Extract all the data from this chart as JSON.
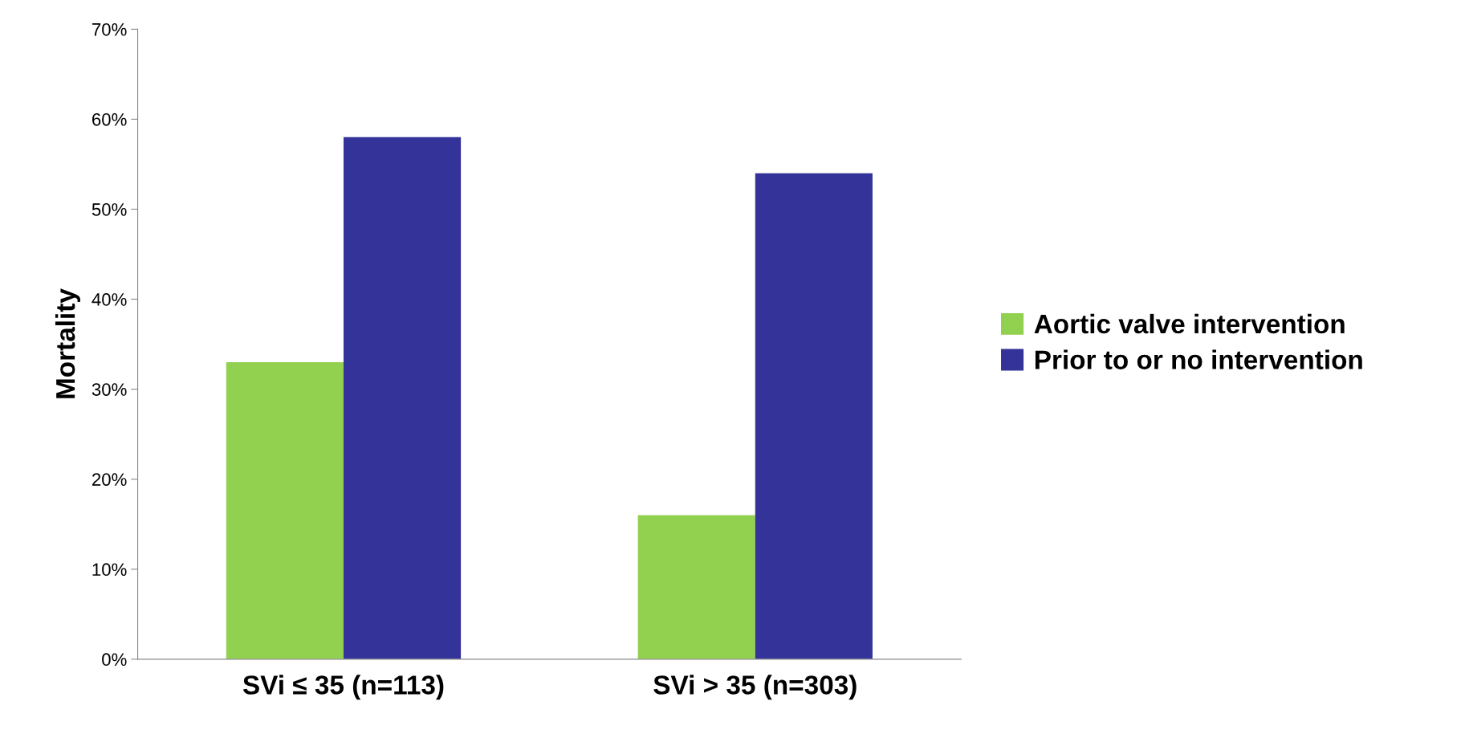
{
  "chart_data": {
    "type": "bar",
    "ylabel": "Mortality",
    "categories": [
      "SVi ≤ 35 (n=113)",
      "SVi > 35 (n=303)"
    ],
    "series": [
      {
        "name": "Aortic valve intervention",
        "color": "#92d050",
        "values": [
          33,
          16
        ]
      },
      {
        "name": "Prior to or no intervention",
        "color": "#333399",
        "values": [
          58,
          54
        ]
      }
    ],
    "ylim": [
      0,
      70
    ],
    "yticks": [
      {
        "value": 0,
        "label": "0%"
      },
      {
        "value": 10,
        "label": "10%"
      },
      {
        "value": 20,
        "label": "20%"
      },
      {
        "value": 30,
        "label": "30%"
      },
      {
        "value": 40,
        "label": "40%"
      },
      {
        "value": 50,
        "label": "50%"
      },
      {
        "value": 60,
        "label": "60%"
      },
      {
        "value": 70,
        "label": "70%"
      }
    ],
    "grid": false,
    "legend": "right"
  }
}
